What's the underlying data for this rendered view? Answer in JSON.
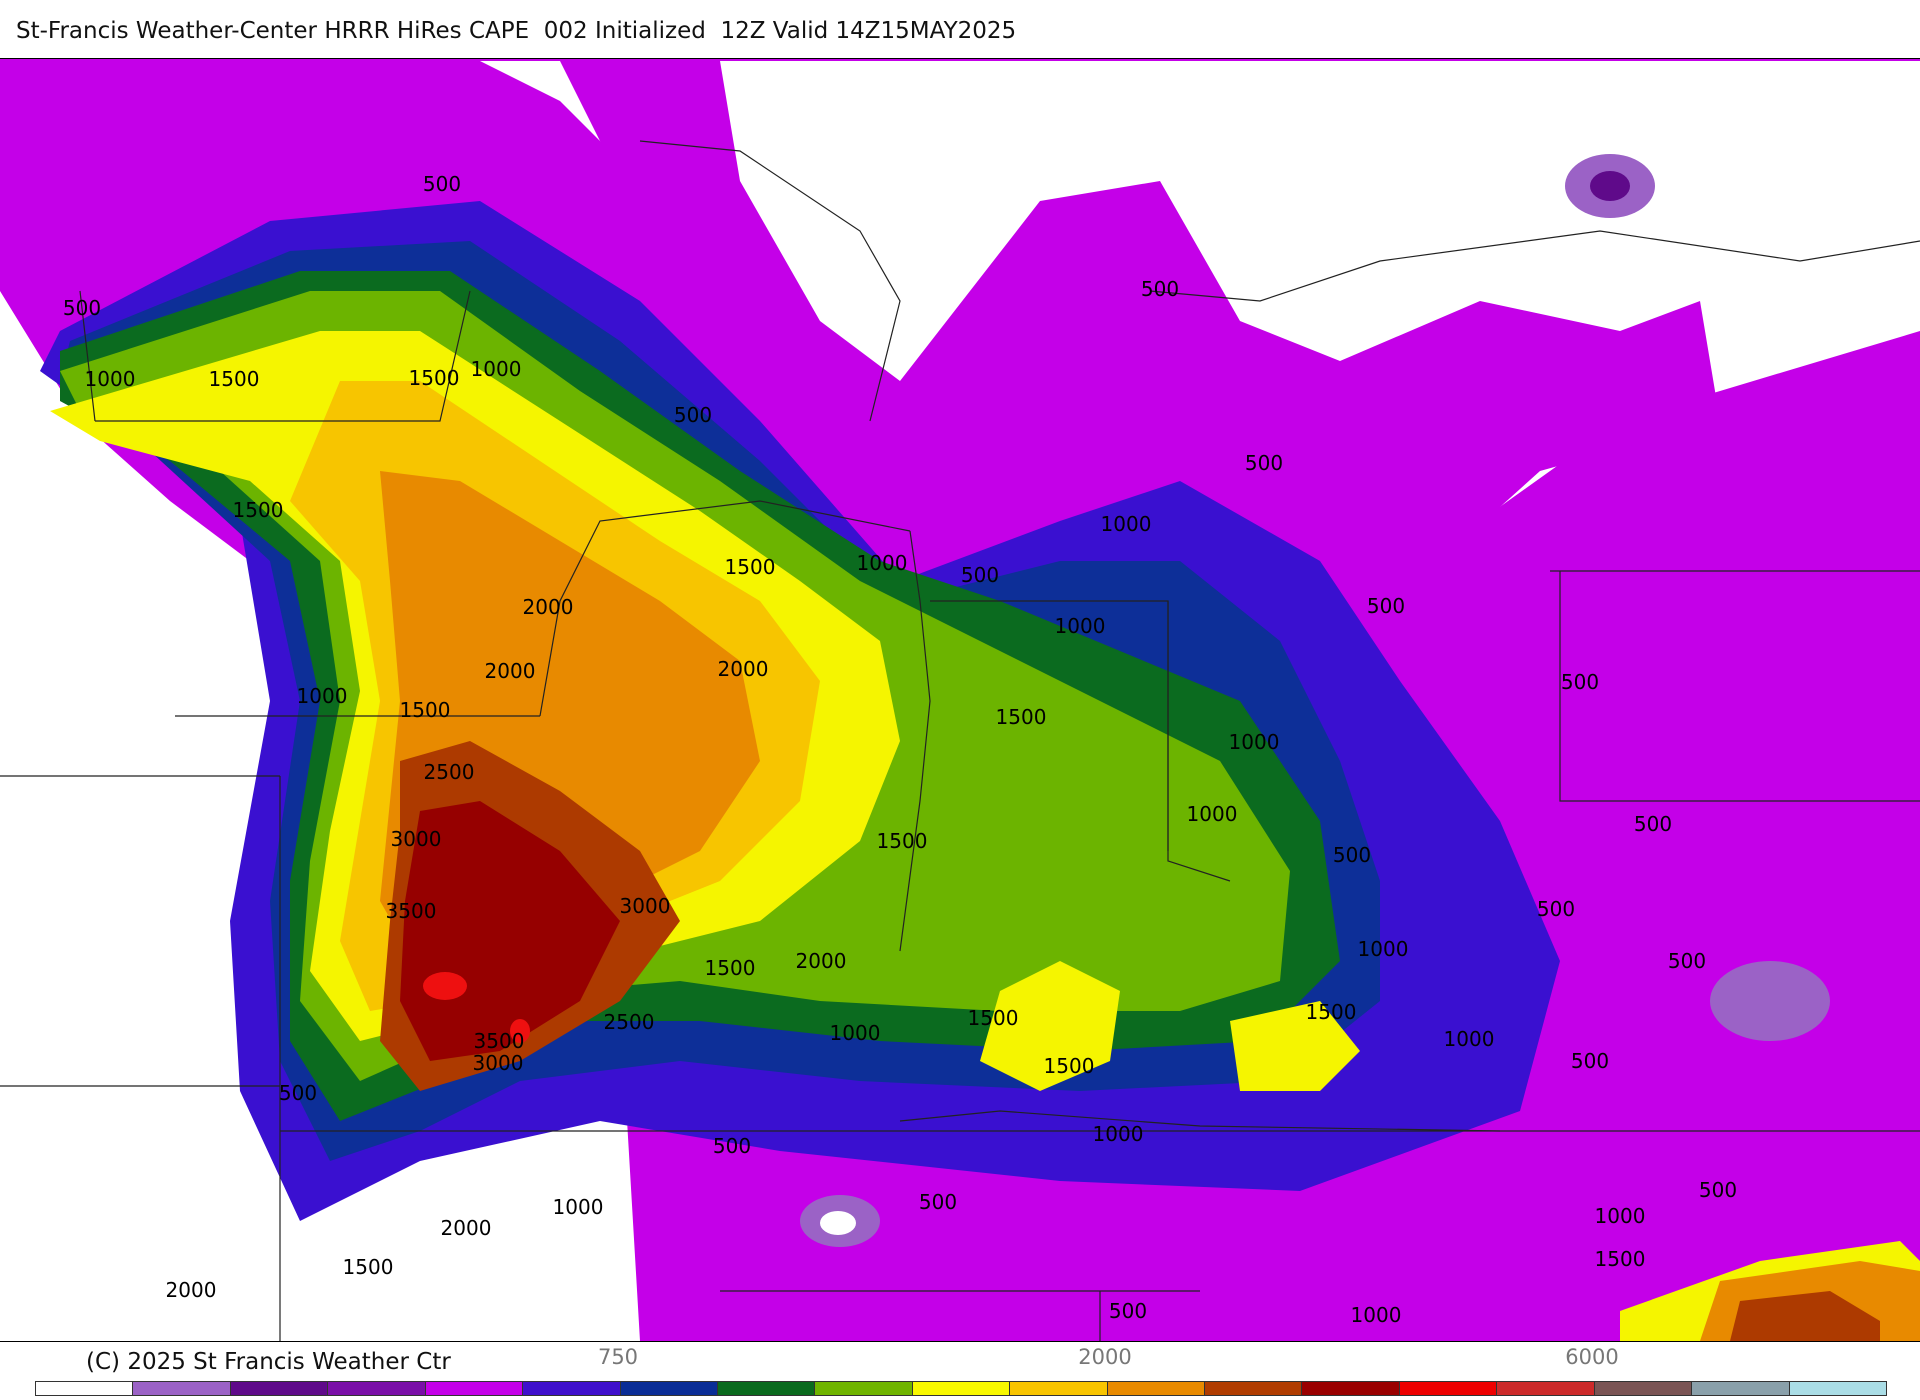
{
  "header": {
    "title": "St-Francis Weather-Center HRRR HiRes CAPE  002 Initialized  12Z Valid 14Z15MAY2025"
  },
  "footer": {
    "copyright": "(C) 2025 St Francis Weather Ctr"
  },
  "colorbar": {
    "tick_labels": [
      "750",
      "2000",
      "6000"
    ],
    "colors": [
      "#ffffff",
      "#9b62c6",
      "#5f0a8a",
      "#7a0fa8",
      "#c400e8",
      "#3f10cc",
      "#0a2d96",
      "#0a6a1e",
      "#6fb400",
      "#f8f800",
      "#f8c400",
      "#e88a00",
      "#b03c00",
      "#9a0000",
      "#ee0000",
      "#cc2a2a",
      "#7a5454",
      "#8aa0aa",
      "#aadde6"
    ]
  },
  "contour_labels": [
    "500",
    "1000",
    "1500",
    "2000",
    "2500",
    "3000",
    "3500"
  ],
  "map": {
    "field": "CAPE",
    "colors": {
      "white": "#ffffff",
      "magenta": "#c400e8",
      "blue": "#3a10d0",
      "navy": "#0d2f98",
      "dark_green": "#0b6b1f",
      "green": "#6cb400",
      "yellow": "#f5f500",
      "gold": "#f7c500",
      "orange": "#e88a00",
      "brown": "#ad3a00",
      "dark_red": "#960000",
      "red": "#ee1010",
      "lavender": "#9b62c6",
      "purple": "#5f0a8a"
    }
  }
}
